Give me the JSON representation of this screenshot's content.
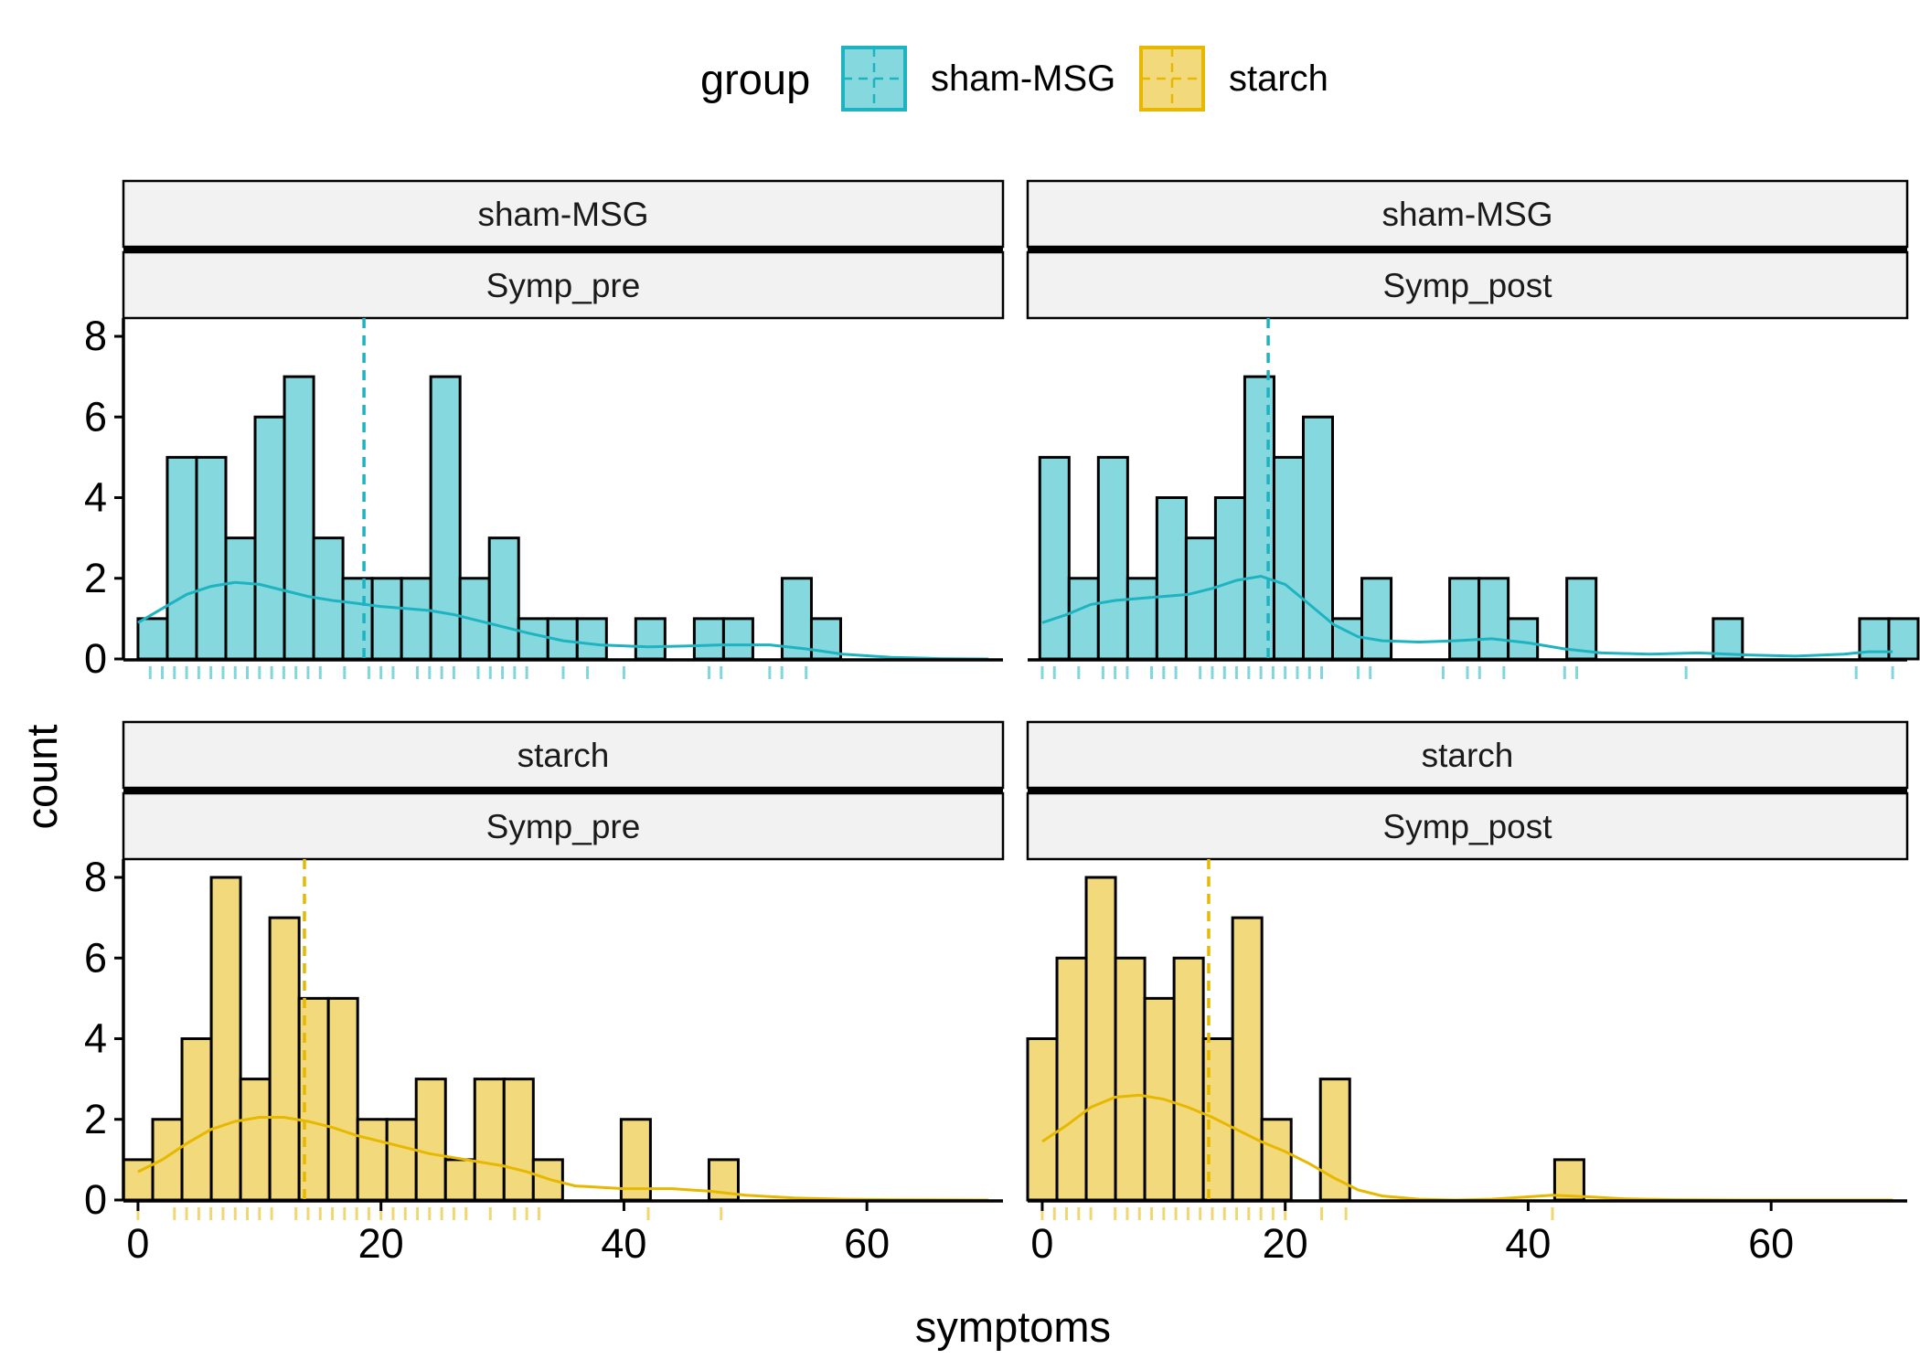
{
  "chart_data": {
    "type": "bar",
    "subtype": "faceted histogram with density curve, mean line and rug",
    "xlabel": "symptoms",
    "ylabel": "count",
    "x_ticks": [
      "0",
      "20",
      "40",
      "60"
    ],
    "y_ticks": [
      "0",
      "2",
      "4",
      "6",
      "8"
    ],
    "xlim": [
      -1.2,
      71.2
    ],
    "ylim": [
      0,
      8
    ],
    "bin_width": 2.41,
    "grid": false,
    "legend": {
      "title": "group",
      "position": "top",
      "items": [
        {
          "label": "sham-MSG",
          "fill": "#84d8de",
          "line": "#1eb3c0"
        },
        {
          "label": "starch",
          "fill": "#f2da7c",
          "line": "#e7b800"
        }
      ]
    },
    "panels": [
      {
        "group": "sham-MSG",
        "variable": "Symp_pre",
        "bin_start": 0,
        "counts": [
          1,
          5,
          5,
          3,
          6,
          7,
          3,
          2,
          2,
          2,
          7,
          2,
          3,
          1,
          1,
          1,
          0,
          1,
          0,
          1,
          1,
          0,
          2,
          1
        ],
        "mean": 18.6,
        "density_scaled": [
          [
            0,
            0.9
          ],
          [
            2,
            1.25
          ],
          [
            4,
            1.6
          ],
          [
            6,
            1.8
          ],
          [
            8,
            1.9
          ],
          [
            10,
            1.85
          ],
          [
            12,
            1.7
          ],
          [
            14,
            1.55
          ],
          [
            16,
            1.45
          ],
          [
            18,
            1.38
          ],
          [
            20,
            1.3
          ],
          [
            22,
            1.25
          ],
          [
            24,
            1.2
          ],
          [
            26,
            1.1
          ],
          [
            28,
            0.95
          ],
          [
            30,
            0.8
          ],
          [
            32,
            0.65
          ],
          [
            35,
            0.45
          ],
          [
            38,
            0.35
          ],
          [
            42,
            0.3
          ],
          [
            45,
            0.32
          ],
          [
            48,
            0.35
          ],
          [
            52,
            0.35
          ],
          [
            55,
            0.25
          ],
          [
            58,
            0.12
          ],
          [
            62,
            0.04
          ],
          [
            66,
            0.01
          ],
          [
            70,
            0
          ]
        ],
        "rug": [
          1,
          2,
          3,
          4,
          5,
          6,
          7,
          8,
          9,
          10,
          11,
          12,
          13,
          14,
          15,
          17,
          19,
          20,
          21,
          23,
          24,
          25,
          26,
          28,
          29,
          30,
          31,
          32,
          35,
          37,
          40,
          47,
          48,
          52,
          53,
          55
        ]
      },
      {
        "group": "sham-MSG",
        "variable": "Symp_post",
        "bin_start": -0.2,
        "counts": [
          5,
          2,
          5,
          2,
          4,
          3,
          4,
          7,
          5,
          6,
          1,
          2,
          0,
          0,
          2,
          2,
          1,
          0,
          2,
          0,
          0,
          0,
          0,
          1,
          0,
          0,
          0,
          0,
          1,
          1
        ],
        "mean": 18.6,
        "density_scaled": [
          [
            0,
            0.9
          ],
          [
            2,
            1.1
          ],
          [
            4,
            1.35
          ],
          [
            6,
            1.45
          ],
          [
            8,
            1.5
          ],
          [
            10,
            1.55
          ],
          [
            12,
            1.6
          ],
          [
            14,
            1.75
          ],
          [
            16,
            1.95
          ],
          [
            18,
            2.05
          ],
          [
            20,
            1.85
          ],
          [
            22,
            1.35
          ],
          [
            24,
            0.85
          ],
          [
            26,
            0.55
          ],
          [
            28,
            0.45
          ],
          [
            31,
            0.42
          ],
          [
            34,
            0.45
          ],
          [
            37,
            0.5
          ],
          [
            40,
            0.4
          ],
          [
            43,
            0.25
          ],
          [
            46,
            0.15
          ],
          [
            50,
            0.12
          ],
          [
            54,
            0.15
          ],
          [
            58,
            0.1
          ],
          [
            62,
            0.07
          ],
          [
            66,
            0.12
          ],
          [
            68,
            0.18
          ],
          [
            70,
            0.18
          ]
        ],
        "rug": [
          0,
          1,
          3,
          5,
          6,
          7,
          9,
          10,
          11,
          13,
          14,
          15,
          16,
          17,
          18,
          19,
          20,
          21,
          22,
          23,
          26,
          27,
          33,
          35,
          36,
          38,
          43,
          44,
          53,
          67,
          70
        ]
      },
      {
        "group": "starch",
        "variable": "Symp_pre",
        "bin_start": -1.2,
        "counts": [
          1,
          2,
          4,
          8,
          3,
          7,
          5,
          5,
          2,
          2,
          3,
          1,
          3,
          3,
          1,
          0,
          0,
          2,
          0,
          0,
          1
        ],
        "mean": 13.7,
        "density_scaled": [
          [
            0,
            0.7
          ],
          [
            2,
            1
          ],
          [
            4,
            1.4
          ],
          [
            6,
            1.75
          ],
          [
            8,
            1.95
          ],
          [
            10,
            2.05
          ],
          [
            12,
            2.05
          ],
          [
            14,
            1.95
          ],
          [
            16,
            1.8
          ],
          [
            18,
            1.6
          ],
          [
            20,
            1.45
          ],
          [
            22,
            1.3
          ],
          [
            24,
            1.15
          ],
          [
            26,
            1.05
          ],
          [
            28,
            0.95
          ],
          [
            30,
            0.85
          ],
          [
            32,
            0.7
          ],
          [
            34,
            0.5
          ],
          [
            36,
            0.35
          ],
          [
            40,
            0.28
          ],
          [
            44,
            0.28
          ],
          [
            47,
            0.22
          ],
          [
            50,
            0.12
          ],
          [
            54,
            0.05
          ],
          [
            58,
            0.02
          ],
          [
            62,
            0.01
          ],
          [
            70,
            0
          ]
        ],
        "rug": [
          0,
          3,
          4,
          5,
          6,
          7,
          8,
          9,
          10,
          11,
          13,
          14,
          15,
          16,
          17,
          18,
          19,
          20,
          21,
          22,
          23,
          24,
          25,
          26,
          27,
          29,
          31,
          32,
          33,
          42,
          48
        ]
      },
      {
        "group": "starch",
        "variable": "Symp_post",
        "bin_start": -1.2,
        "counts": [
          4,
          6,
          8,
          6,
          5,
          6,
          4,
          7,
          2,
          0,
          3,
          0,
          0,
          0,
          0,
          0,
          0,
          0,
          1
        ],
        "mean": 13.7,
        "density_scaled": [
          [
            0,
            1.45
          ],
          [
            2,
            1.85
          ],
          [
            4,
            2.3
          ],
          [
            6,
            2.55
          ],
          [
            8,
            2.6
          ],
          [
            10,
            2.5
          ],
          [
            12,
            2.3
          ],
          [
            14,
            2.05
          ],
          [
            16,
            1.75
          ],
          [
            18,
            1.45
          ],
          [
            20,
            1.2
          ],
          [
            22,
            0.9
          ],
          [
            24,
            0.55
          ],
          [
            26,
            0.25
          ],
          [
            28,
            0.1
          ],
          [
            31,
            0.02
          ],
          [
            34,
            0
          ],
          [
            37,
            0.02
          ],
          [
            40,
            0.08
          ],
          [
            42,
            0.12
          ],
          [
            45,
            0.08
          ],
          [
            48,
            0.03
          ],
          [
            52,
            0.01
          ],
          [
            58,
            0
          ],
          [
            70,
            0
          ]
        ],
        "rug": [
          0,
          1,
          2,
          3,
          4,
          6,
          7,
          8,
          9,
          10,
          11,
          12,
          13,
          14,
          15,
          16,
          17,
          18,
          19,
          20,
          23,
          25,
          42
        ]
      }
    ]
  }
}
